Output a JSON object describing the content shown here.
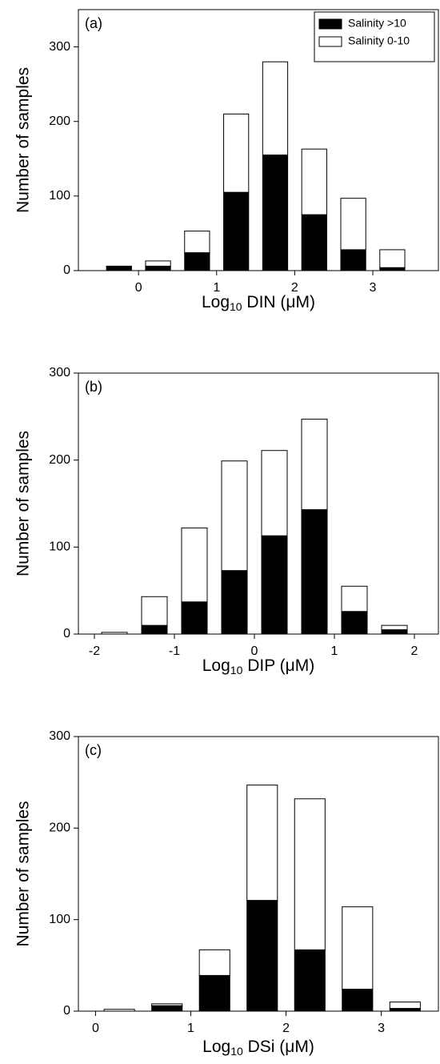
{
  "chart_data": [
    {
      "type": "histogram",
      "annotation": "(a)",
      "xlabel": {
        "text": "Log",
        "subscript": "10",
        "suffix": " DIN (μM)"
      },
      "ylabel": "Number of samples",
      "bins": [
        -0.5,
        0,
        0.5,
        1,
        1.5,
        2,
        2.5,
        3,
        3.5
      ],
      "series": [
        {
          "name": "Salinity >10",
          "color": "#000000",
          "values": [
            6,
            6,
            24,
            105,
            155,
            75,
            28,
            4
          ]
        },
        {
          "name": "Salinity 0-10",
          "color": "#ffffff",
          "values": [
            0,
            7,
            29,
            105,
            125,
            88,
            69,
            24
          ]
        }
      ],
      "xlim": [
        -0.77,
        3.84
      ],
      "xticks": [
        0,
        1,
        2,
        3
      ],
      "ylim": [
        0,
        350
      ],
      "yticks": [
        0,
        100,
        200,
        300
      ],
      "legend": "upper right"
    },
    {
      "type": "histogram",
      "annotation": "(b)",
      "xlabel": {
        "text": "Log",
        "subscript": "10",
        "suffix": " DIP (μM)"
      },
      "ylabel": "Number of samples",
      "bins": [
        -2,
        -1.5,
        -1,
        -0.5,
        0,
        0.5,
        1,
        1.5,
        2
      ],
      "series": [
        {
          "color": "#000000",
          "values": [
            0,
            10,
            37,
            73,
            113,
            143,
            26,
            5
          ]
        },
        {
          "color": "#ffffff",
          "values": [
            2,
            33,
            85,
            126,
            98,
            104,
            29,
            5
          ]
        }
      ],
      "xlim": [
        -2.2,
        2.3
      ],
      "xticks": [
        -2,
        -1,
        0,
        1,
        2
      ],
      "ylim": [
        0,
        300
      ],
      "yticks": [
        0,
        100,
        200,
        300
      ]
    },
    {
      "type": "histogram",
      "annotation": "(c)",
      "xlabel": {
        "text": "Log",
        "subscript": "10",
        "suffix": " DSi (μM)"
      },
      "ylabel": "Number of samples",
      "bins": [
        0,
        0.5,
        1,
        1.5,
        2,
        2.5,
        3,
        3.5
      ],
      "series": [
        {
          "color": "#000000",
          "values": [
            0,
            6,
            39,
            121,
            67,
            24,
            3
          ]
        },
        {
          "color": "#ffffff",
          "values": [
            2,
            2,
            28,
            126,
            165,
            90,
            7
          ]
        }
      ],
      "xlim": [
        -0.18,
        3.6
      ],
      "xticks": [
        0,
        1,
        2,
        3
      ],
      "ylim": [
        0,
        300
      ],
      "yticks": [
        0,
        100,
        200,
        300
      ]
    }
  ]
}
